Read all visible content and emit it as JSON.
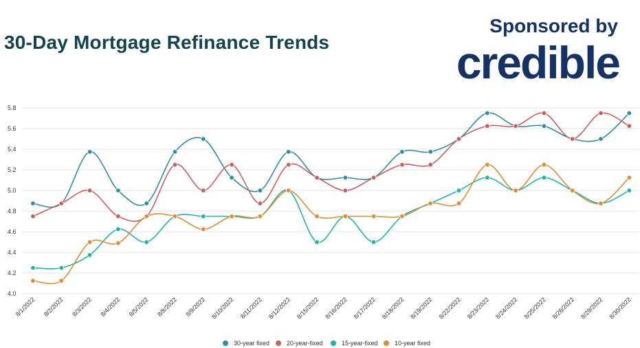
{
  "header": {
    "title": "30-Day Mortgage Refinance Trends",
    "sponsor_label": "Sponsored by",
    "brand": "credible"
  },
  "chart_data": {
    "type": "line",
    "title": "30-Day Mortgage Refinance Trends",
    "xlabel": "",
    "ylabel": "",
    "categories": [
      "8/1/2022",
      "8/2/2022",
      "8/3/2022",
      "8/4/2022",
      "8/5/2022",
      "8/8/2022",
      "8/9/2022",
      "8/10/2022",
      "8/11/2022",
      "8/12/2022",
      "8/15/2022",
      "8/16/2022",
      "8/17/2022",
      "8/18/2022",
      "8/19/2022",
      "8/22/2022",
      "8/23/2022",
      "8/24/2022",
      "8/25/2022",
      "8/26/2022",
      "8/29/2022",
      "8/30/2022"
    ],
    "ylim": [
      4.0,
      5.8
    ],
    "yticks": [
      "5.8",
      "5.6",
      "5.4",
      "5.2",
      "5.0",
      "4.8",
      "4.6",
      "4.4",
      "4.2",
      "4.0"
    ],
    "grid": true,
    "legend_position": "bottom",
    "series": [
      {
        "name": "30-year fixed",
        "color": "#2a8fa0",
        "values": [
          4.875,
          4.875,
          5.375,
          5.0,
          4.875,
          5.375,
          5.5,
          5.125,
          5.0,
          5.375,
          5.125,
          5.125,
          5.125,
          5.375,
          5.375,
          5.5,
          5.75,
          5.625,
          5.625,
          5.5,
          5.5,
          5.75
        ]
      },
      {
        "name": "20-year-fixed",
        "color": "#d05a5e",
        "values": [
          4.75,
          4.875,
          5.0,
          4.75,
          4.75,
          5.25,
          5.0,
          5.25,
          4.875,
          5.25,
          5.125,
          5.0,
          5.125,
          5.25,
          5.25,
          5.5,
          5.625,
          5.625,
          5.75,
          5.5,
          5.75,
          5.625
        ]
      },
      {
        "name": "15-year-fixed",
        "color": "#17b9a3",
        "values": [
          4.25,
          4.25,
          4.375,
          4.625,
          4.5,
          4.75,
          4.75,
          4.75,
          4.75,
          5.0,
          4.5,
          4.75,
          4.5,
          4.75,
          4.875,
          5.0,
          5.125,
          5.0,
          5.125,
          5.0,
          4.875,
          5.0
        ]
      },
      {
        "name": "10-year fixed",
        "color": "#e58a2e",
        "values": [
          4.125,
          4.125,
          4.5,
          4.49,
          4.75,
          4.75,
          4.625,
          4.75,
          4.75,
          5.0,
          4.75,
          4.75,
          4.75,
          4.75,
          4.875,
          4.875,
          5.25,
          5.0,
          5.25,
          5.0,
          4.875,
          5.125
        ]
      }
    ]
  }
}
